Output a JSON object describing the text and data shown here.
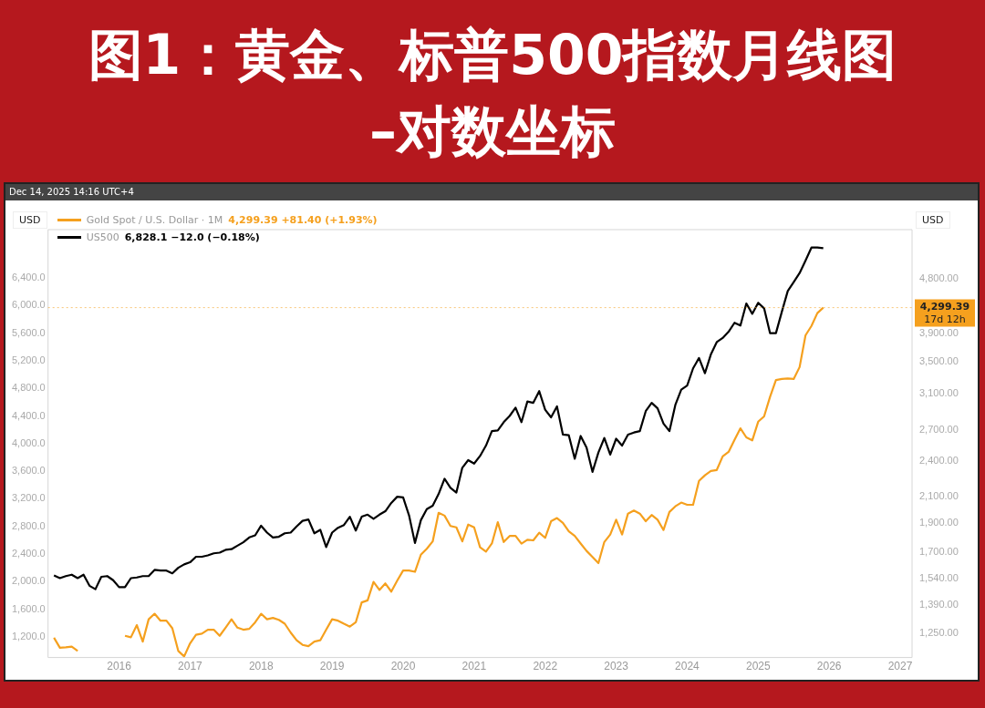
{
  "chart_data": {
    "type": "line",
    "title": "图1：黄金、标普500指数月线图",
    "subtitle": "–对数坐标",
    "ylabel": "USD",
    "y2label": "USD",
    "x": [
      "2015-02",
      "2015-03",
      "2015-04",
      "2015-05",
      "2015-06",
      "2015-07",
      "2015-08",
      "2015-09",
      "2015-10",
      "2015-11",
      "2015-12",
      "2016-01",
      "2016-02",
      "2016-03",
      "2016-04",
      "2016-05",
      "2016-06",
      "2016-07",
      "2016-08",
      "2016-09",
      "2016-10",
      "2016-11",
      "2016-12",
      "2017-01",
      "2017-02",
      "2017-03",
      "2017-04",
      "2017-05",
      "2017-06",
      "2017-07",
      "2017-08",
      "2017-09",
      "2017-10",
      "2017-11",
      "2017-12",
      "2018-01",
      "2018-02",
      "2018-03",
      "2018-04",
      "2018-05",
      "2018-06",
      "2018-07",
      "2018-08",
      "2018-09",
      "2018-10",
      "2018-11",
      "2018-12",
      "2019-01",
      "2019-02",
      "2019-03",
      "2019-04",
      "2019-05",
      "2019-06",
      "2019-07",
      "2019-08",
      "2019-09",
      "2019-10",
      "2019-11",
      "2019-12",
      "2020-01",
      "2020-02",
      "2020-03",
      "2020-04",
      "2020-05",
      "2020-06",
      "2020-07",
      "2020-08",
      "2020-09",
      "2020-10",
      "2020-11",
      "2020-12",
      "2021-01",
      "2021-02",
      "2021-03",
      "2021-04",
      "2021-05",
      "2021-06",
      "2021-07",
      "2021-08",
      "2021-09",
      "2021-10",
      "2021-11",
      "2021-12",
      "2022-01",
      "2022-02",
      "2022-03",
      "2022-04",
      "2022-05",
      "2022-06",
      "2022-07",
      "2022-08",
      "2022-09",
      "2022-10",
      "2022-11",
      "2022-12",
      "2023-01",
      "2023-02",
      "2023-03",
      "2023-04",
      "2023-05",
      "2023-06",
      "2023-07",
      "2023-08",
      "2023-09",
      "2023-10",
      "2023-11",
      "2023-12",
      "2024-01",
      "2024-02",
      "2024-03",
      "2024-04",
      "2024-05",
      "2024-06",
      "2024-07",
      "2024-08",
      "2024-09",
      "2024-10",
      "2024-11",
      "2024-12",
      "2025-01",
      "2025-02",
      "2025-03",
      "2025-04",
      "2025-05",
      "2025-06",
      "2025-07",
      "2025-08",
      "2025-09",
      "2025-10",
      "2025-11",
      "2025-12"
    ],
    "series": [
      {
        "name": "Gold Spot / U.S. Dollar · 1M",
        "color": "#f5a01e",
        "axis": "y2",
        "values": [
          1229,
          1183,
          1185,
          1188,
          1169,
          null,
          null,
          null,
          null,
          null,
          null,
          null,
          1238,
          1231,
          1289,
          1211,
          1318,
          1346,
          1311,
          1311,
          1274,
          1169,
          1145,
          1203,
          1243,
          1248,
          1267,
          1267,
          1238,
          1277,
          1318,
          1277,
          1267,
          1271,
          1303,
          1346,
          1318,
          1325,
          1315,
          1296,
          1253,
          1217,
          1196,
          1190,
          1211,
          1217,
          1267,
          1318,
          1311,
          1296,
          1282,
          1303,
          1405,
          1416,
          1519,
          1473,
          1510,
          1464,
          1526,
          1586,
          1586,
          1578,
          1684,
          1722,
          1771,
          1974,
          1953,
          1878,
          1868,
          1771,
          1888,
          1868,
          1732,
          1704,
          1757,
          1905,
          1767,
          1808,
          1808,
          1756,
          1782,
          1778,
          1830,
          1795,
          1912,
          1935,
          1900,
          1840,
          1808,
          1757,
          1708,
          1670,
          1631,
          1767,
          1818,
          1923,
          1818,
          1968,
          1991,
          1968,
          1912,
          1958,
          1923,
          1849,
          1980,
          2023,
          2052,
          2035,
          2035,
          2228,
          2276,
          2314,
          2322,
          2445,
          2487,
          2604,
          2720,
          2628,
          2598,
          2789,
          2846,
          3063,
          3266,
          3280,
          3285,
          3280,
          3431,
          3871,
          4010,
          4211,
          4299.39
        ]
      },
      {
        "name": "US500",
        "color": "#000000",
        "axis": "y",
        "values": [
          2090,
          2050,
          2080,
          2100,
          2050,
          2100,
          1940,
          1890,
          2070,
          2080,
          2020,
          1920,
          1920,
          2050,
          2060,
          2080,
          2080,
          2170,
          2160,
          2160,
          2120,
          2200,
          2250,
          2280,
          2360,
          2360,
          2380,
          2410,
          2420,
          2460,
          2470,
          2520,
          2570,
          2640,
          2670,
          2810,
          2710,
          2640,
          2650,
          2700,
          2710,
          2800,
          2880,
          2900,
          2700,
          2750,
          2500,
          2710,
          2780,
          2820,
          2940,
          2740,
          2940,
          2970,
          2910,
          2970,
          3020,
          3140,
          3230,
          3220,
          2960,
          2560,
          2890,
          3050,
          3100,
          3270,
          3490,
          3360,
          3290,
          3650,
          3760,
          3710,
          3820,
          3970,
          4180,
          4190,
          4310,
          4400,
          4520,
          4310,
          4610,
          4590,
          4760,
          4490,
          4380,
          4540,
          4130,
          4120,
          3780,
          4110,
          3940,
          3590,
          3870,
          4080,
          3840,
          4070,
          3970,
          4130,
          4160,
          4180,
          4470,
          4590,
          4510,
          4290,
          4180,
          4560,
          4780,
          4840,
          5090,
          5240,
          5020,
          5290,
          5470,
          5530,
          5620,
          5750,
          5710,
          6030,
          5880,
          6040,
          5960,
          5600,
          5600,
          5910,
          6210,
          6340,
          6470,
          6650,
          6840,
          6840,
          6830
        ]
      }
    ],
    "xlim": [
      "2015-01",
      "2027-03"
    ],
    "xticks": [
      "2016",
      "2017",
      "2018",
      "2019",
      "2020",
      "2021",
      "2022",
      "2023",
      "2024",
      "2025",
      "2026",
      "2027"
    ],
    "ylim": [
      900,
      7100
    ],
    "yticks": [
      {
        "value": 1200,
        "label": "1,200.0"
      },
      {
        "value": 1600,
        "label": "1,600.0"
      },
      {
        "value": 2000,
        "label": "2,000.0"
      },
      {
        "value": 2400,
        "label": "2,400.0"
      },
      {
        "value": 2800,
        "label": "2,800.0"
      },
      {
        "value": 3200,
        "label": "3,200.0"
      },
      {
        "value": 3600,
        "label": "3,600.0"
      },
      {
        "value": 4000,
        "label": "4,000.0"
      },
      {
        "value": 4400,
        "label": "4,400.0"
      },
      {
        "value": 4800,
        "label": "4,800.0"
      },
      {
        "value": 5200,
        "label": "5,200.0"
      },
      {
        "value": 5600,
        "label": "5,600.0"
      },
      {
        "value": 6000,
        "label": "6,000.0"
      },
      {
        "value": 6400,
        "label": "6,400.0"
      }
    ],
    "y2lim": [
      1140,
      5780
    ],
    "y2ticks": [
      {
        "value": 1250,
        "label": "1,250.00"
      },
      {
        "value": 1390,
        "label": "1,390.00"
      },
      {
        "value": 1540,
        "label": "1,540.00"
      },
      {
        "value": 1700,
        "label": "1,700.00"
      },
      {
        "value": 1900,
        "label": "1,900.00"
      },
      {
        "value": 2100,
        "label": "2,100.00"
      },
      {
        "value": 2400,
        "label": "2,400.00"
      },
      {
        "value": 2700,
        "label": "2,700.00"
      },
      {
        "value": 3100,
        "label": "3,100.00"
      },
      {
        "value": 3500,
        "label": "3,500.00"
      },
      {
        "value": 3900,
        "label": "3,900.00"
      },
      {
        "value": 4800,
        "label": "4,800.00"
      }
    ],
    "log": "y2",
    "legend": "top left",
    "ref_lines": [
      {
        "axis": "y2",
        "value": 4299.39,
        "label": "4,299.39",
        "color": "#f5a01e",
        "line_style": "dotted"
      }
    ],
    "annotations": [
      "4,299.39 +81.40 (+1.93%)",
      "6,828.1 −12.0 (−0.18%)",
      "Dec 14, 2025 14:16 UTC+4",
      "17d 12h"
    ]
  }
}
